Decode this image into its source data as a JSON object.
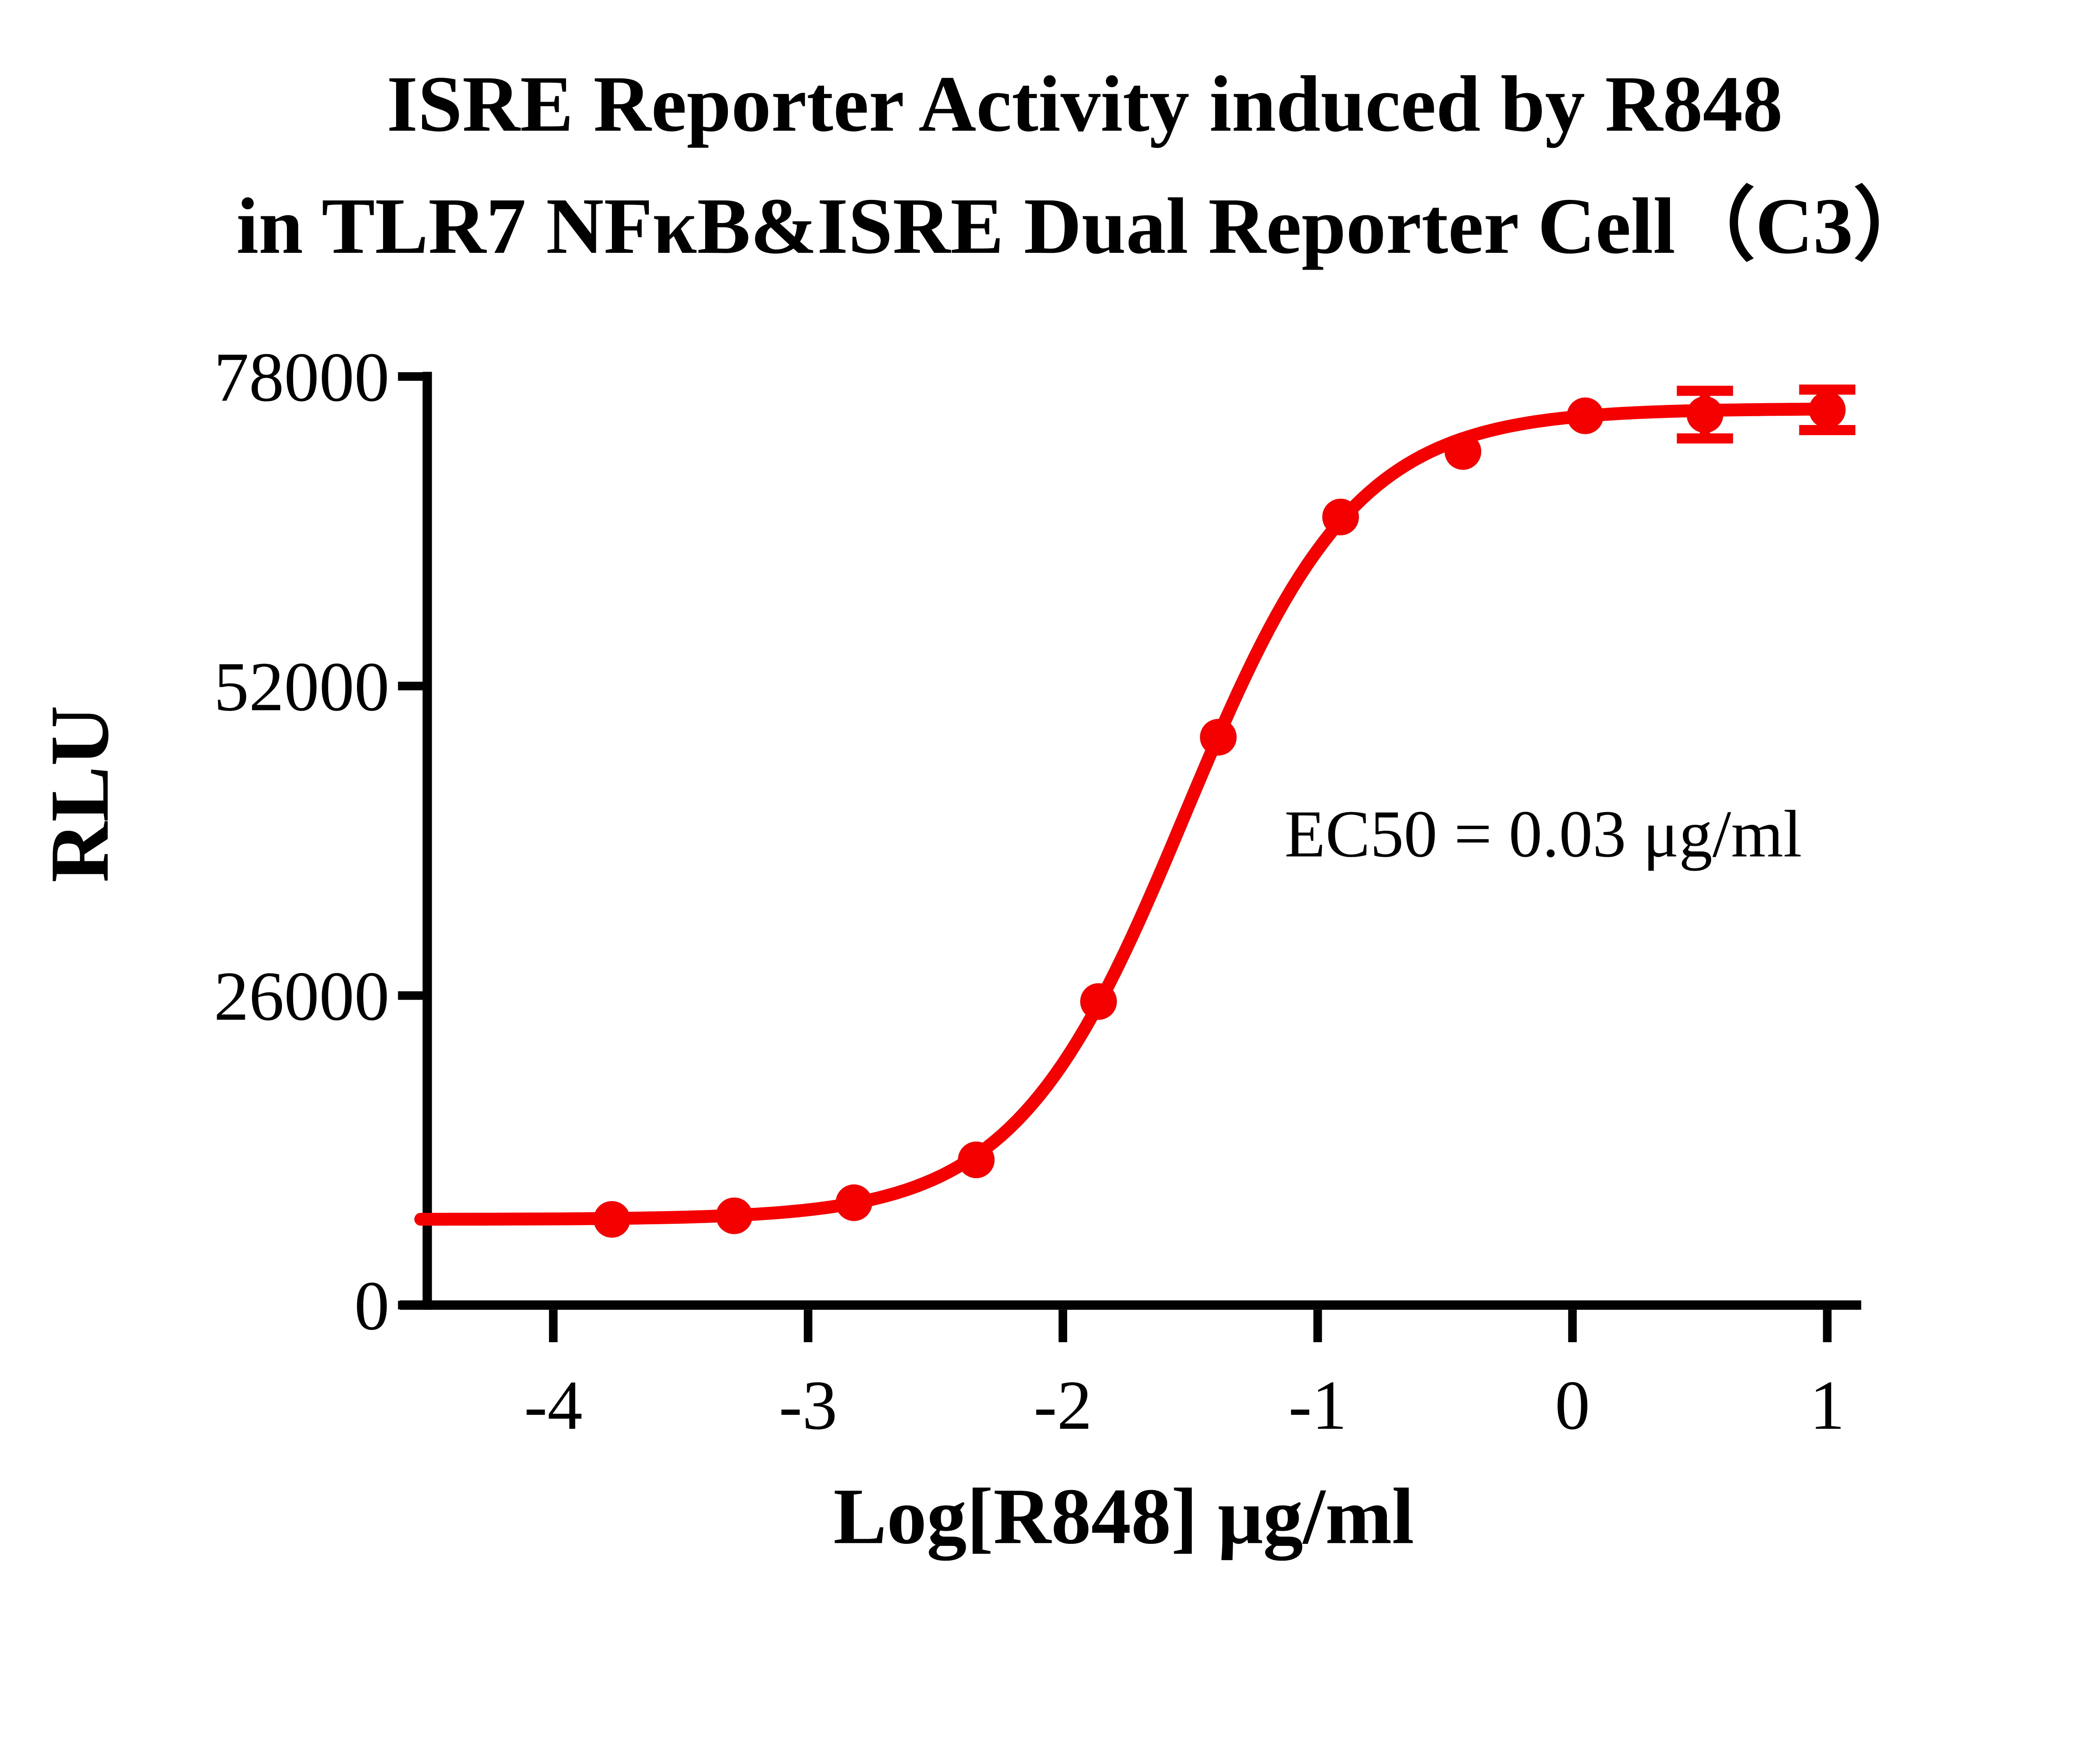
{
  "title": {
    "line1": "ISRE Reporter Activity induced by R848",
    "line2": "in TLR7 NFκB&ISRE Dual Reporter Cell（C3）"
  },
  "chart_data": {
    "type": "scatter",
    "title": "ISRE Reporter Activity induced by R848 in TLR7 NFκB&ISRE Dual Reporter Cell（C3）",
    "xlabel": "Log[R848] μg/ml",
    "ylabel": "RLU",
    "xlim": [
      -4.52,
      1.15
    ],
    "ylim": [
      0,
      78000
    ],
    "grid": false,
    "legend": "none",
    "axis_color": "#000000",
    "x_axis": {
      "ticks": [
        {
          "value": -4,
          "label": "-4"
        },
        {
          "value": -3,
          "label": "-3"
        },
        {
          "value": -2,
          "label": "-2"
        },
        {
          "value": -1,
          "label": "-1"
        },
        {
          "value": 0,
          "label": "0"
        },
        {
          "value": 1,
          "label": "1"
        }
      ]
    },
    "y_axis": {
      "ticks": [
        {
          "value": 0,
          "label": "0"
        },
        {
          "value": 26000,
          "label": "26000"
        },
        {
          "value": 52000,
          "label": "52000"
        },
        {
          "value": 78000,
          "label": "78000"
        }
      ]
    },
    "series": [
      {
        "name": "R848",
        "color": "#F40000",
        "marker": "circle",
        "points": [
          {
            "x": -3.77,
            "y": 7200
          },
          {
            "x": -3.29,
            "y": 7500
          },
          {
            "x": -2.82,
            "y": 8600
          },
          {
            "x": -2.34,
            "y": 12200
          },
          {
            "x": -1.86,
            "y": 25500
          },
          {
            "x": -1.39,
            "y": 47700
          },
          {
            "x": -0.91,
            "y": 66200
          },
          {
            "x": -0.43,
            "y": 71700
          },
          {
            "x": 0.05,
            "y": 74700
          },
          {
            "x": 0.52,
            "y": 74800,
            "err": 2000
          },
          {
            "x": 1.0,
            "y": 75200,
            "err": 1700
          }
        ]
      }
    ],
    "fit": {
      "model": "4PL",
      "bottom": 7200,
      "top": 75300,
      "log_ec50": -1.52,
      "hill": 1.3,
      "x_start": -4.52,
      "x_end": 1.0
    },
    "ec50_text": "EC50 = 0.03 μg/ml"
  }
}
